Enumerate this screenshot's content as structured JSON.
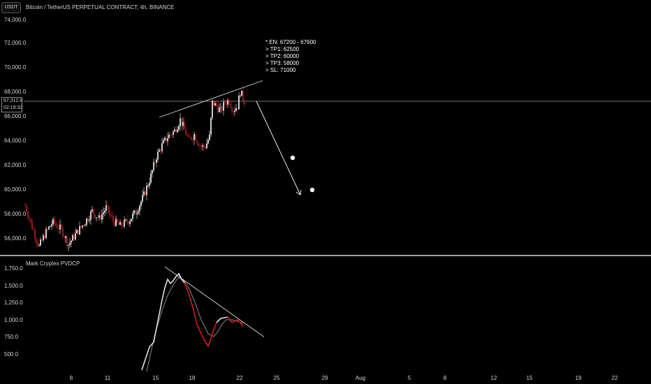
{
  "header": {
    "currency_badge": "USDT",
    "symbol_title": "Bitcoin / TetherUS PERPETUAL CONTRACT, 4h, BINANCE"
  },
  "price_axis": {
    "labels": [
      "74,000.0",
      "72,000.0",
      "70,000.0",
      "68,000.0",
      "66,000.0",
      "64,000.0",
      "62,000.0",
      "60,000.0",
      "58,000.0",
      "56,000.0"
    ]
  },
  "price_tag": {
    "price": "67,312.8",
    "countdown": "02:19:32"
  },
  "indicator": {
    "title": "Mark Cryptex PVDCP",
    "axis_labels": [
      "1,750.0",
      "1,500.0",
      "1,250.0",
      "1,000.0",
      "750.0",
      "500.0"
    ]
  },
  "time_axis": {
    "labels": [
      "8",
      "11",
      "15",
      "18",
      "22",
      "25",
      "29",
      "Aug",
      "5",
      "8",
      "12",
      "15",
      "19",
      "22"
    ]
  },
  "trade_note": {
    "lines": [
      "* EN: 67200 - 67600",
      "> TP1: 62500",
      "> TP2: 60000",
      "> TP3: 58000",
      "> SL: 71000"
    ]
  },
  "colors": {
    "background": "#000000",
    "up_candle": "#ffffff",
    "down_candle": "#b21f2a",
    "indicator_fast": "#e0e0e0",
    "indicator_slow": "#888888",
    "indicator_red": "#d01c1c"
  },
  "chart_data": {
    "type": "candlestick",
    "price_current": 67312.8,
    "price_range": [
      54500,
      74500
    ],
    "indicator_range": [
      300,
      1850
    ],
    "trend_lines": {
      "upper_resistance": [
        [
          66000,
          69000
        ]
      ],
      "indicator_down": [
        [
          1800,
          780
        ]
      ]
    },
    "target_markers": [
      62500,
      60000
    ]
  }
}
